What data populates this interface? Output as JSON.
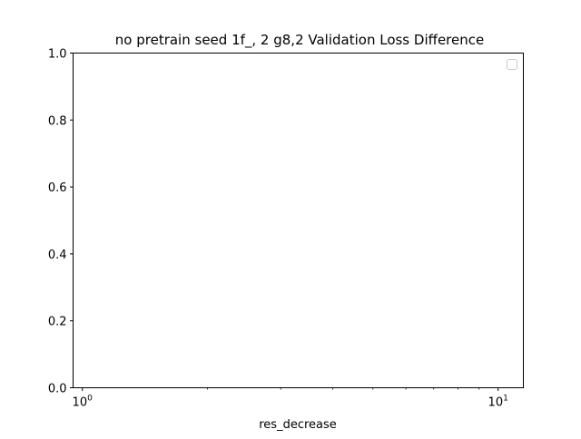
{
  "chart_data": {
    "type": "line",
    "title": "no pretrain seed 1f_, 2 g8,2 Validation Loss Difference",
    "xlabel": "res_decrease",
    "ylabel": "",
    "x_scale": "log",
    "xlim": [
      0.95,
      11.5
    ],
    "ylim": [
      0.0,
      1.0
    ],
    "x_major_ticks": [
      {
        "value": 1,
        "label": "10",
        "exp": "0"
      },
      {
        "value": 10,
        "label": "10",
        "exp": "1"
      }
    ],
    "x_minor_ticks": [
      2,
      3,
      4,
      5,
      6,
      7,
      8,
      9
    ],
    "y_ticks": [
      {
        "value": 0.0,
        "label": "0.0"
      },
      {
        "value": 0.2,
        "label": "0.2"
      },
      {
        "value": 0.4,
        "label": "0.4"
      },
      {
        "value": 0.6,
        "label": "0.6"
      },
      {
        "value": 0.8,
        "label": "0.8"
      },
      {
        "value": 1.0,
        "label": "1.0"
      }
    ],
    "series": [],
    "grid": false,
    "legend": {
      "position": "upper right",
      "entries": []
    }
  }
}
